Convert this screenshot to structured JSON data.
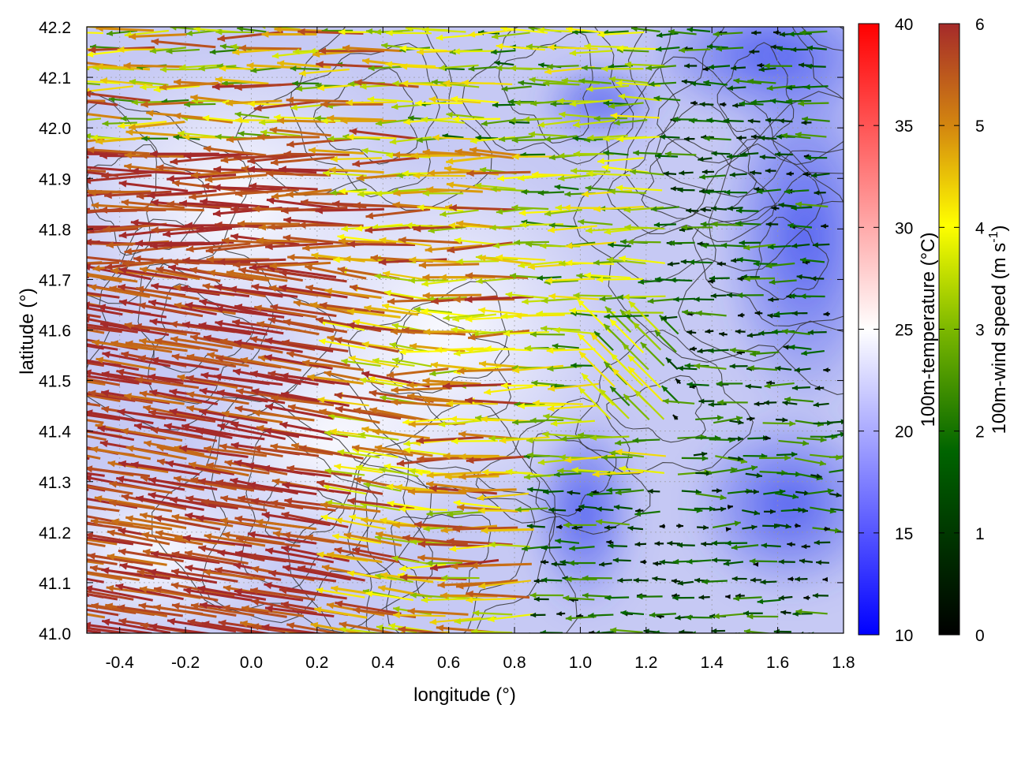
{
  "chart_data": {
    "type": "heatmap",
    "title": "",
    "xlabel": "longitude (°)",
    "ylabel": "latitude (°)",
    "xlim": [
      -0.5,
      1.8
    ],
    "ylim": [
      41.0,
      42.2
    ],
    "x_ticks": [
      "-0.4",
      "-0.2",
      "0.0",
      "0.2",
      "0.4",
      "0.6",
      "0.8",
      "1.0",
      "1.2",
      "1.4",
      "1.6",
      "1.8"
    ],
    "y_ticks": [
      "41.0",
      "41.1",
      "41.2",
      "41.3",
      "41.4",
      "41.5",
      "41.6",
      "41.7",
      "41.8",
      "41.9",
      "42.0",
      "42.1",
      "42.2"
    ],
    "grid": true,
    "overlays": [
      "temperature field",
      "terrain contours",
      "wind vectors"
    ],
    "colorbars": [
      {
        "label": "100m-temperature (°C)",
        "range": [
          10,
          40
        ],
        "ticks": [
          "10",
          "15",
          "20",
          "25",
          "30",
          "35",
          "40"
        ],
        "colors": [
          "#0000ff",
          "#ffffff",
          "#ff0000"
        ]
      },
      {
        "label_main": "100m-wind speed (m s",
        "label_sup": "-1",
        "label_end": ")",
        "range": [
          0,
          6
        ],
        "ticks": [
          "0",
          "1",
          "2",
          "3",
          "4",
          "5",
          "6"
        ],
        "colors": [
          "#000000",
          "#006400",
          "#7cb800",
          "#ffff00",
          "#d4880f",
          "#a52a2a"
        ]
      }
    ]
  }
}
